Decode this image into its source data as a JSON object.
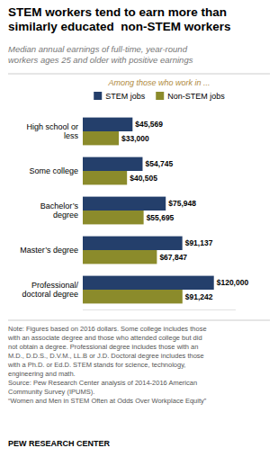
{
  "chart_data": {
    "type": "bar",
    "orientation": "horizontal",
    "title": "STEM workers tend to earn more than\nsimilarly educated  non-STEM workers",
    "subtitle": "Median annual earnings of full-time, year-round\nworkers ages 25 and older with positive earnings",
    "annotations": [
      "Among those who work in ...",
      "Note: Figures based on 2016 dollars. Some college includes those\nwith an associate degree and those who attended college but did\nnot obtain a degree. Professional degree includes those with an\nM.D., D.D.S., D.V.M., LL.B or J.D. Doctoral degree includes those\nwith a Ph.D. or Ed.D. STEM stands for science, technology,\nengineering and math.\nSource: Pew Research Center analysis of 2014-2016 American\nCommunity Survey (IPUMS).\n“Women and Men in STEM Often at Odds Over Workplace Equity”",
      "PEW RESEARCH CENTER"
    ],
    "categories": [
      "High school or\nless",
      "Some college",
      "Bachelor’s\ndegree",
      "Master’s degree",
      "Professional/\ndoctoral degree"
    ],
    "series": [
      {
        "name": "STEM jobs",
        "color": "#243F6B",
        "values": [
          45569,
          54745,
          75948,
          91137,
          120000
        ],
        "value_labels": [
          "$45,569",
          "$54,745",
          "$75,948",
          "$91,137",
          "$120,000"
        ]
      },
      {
        "name": "Non-STEM jobs",
        "color": "#8B8B2B",
        "values": [
          33000,
          40505,
          55695,
          67847,
          91242
        ],
        "value_labels": [
          "$33,000",
          "$40,505",
          "$55,695",
          "$67,847",
          "$91,242"
        ]
      }
    ],
    "xlim": [
      0,
      140000
    ],
    "data_labels": true,
    "tick_labels": "y",
    "legend": "top",
    "grid": false
  }
}
